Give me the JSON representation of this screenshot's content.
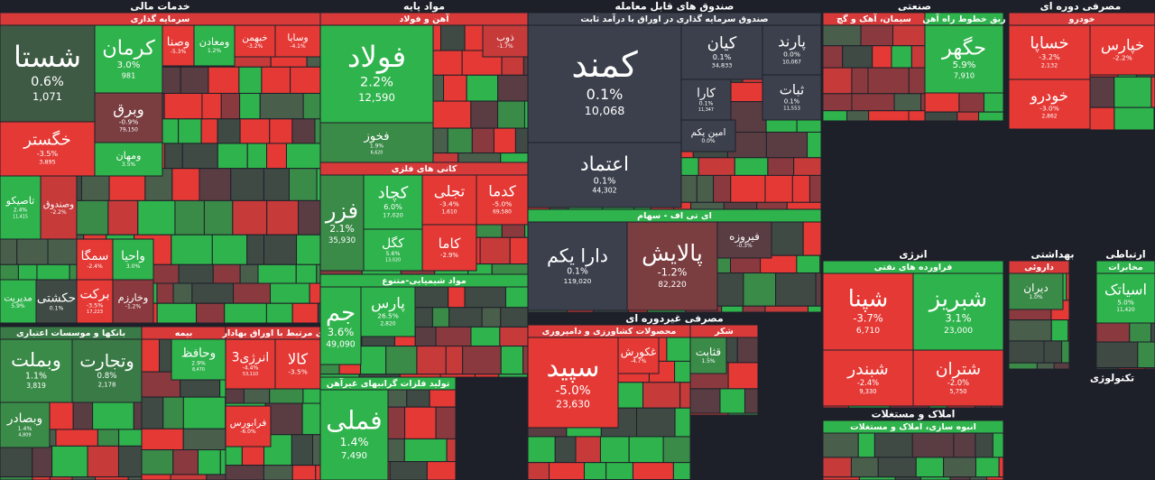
{
  "sections": [
    "خدمات مالی",
    "مواد پایه",
    "صندوق های قابل معامله",
    "صنعتی",
    "مصرفی دوره ای",
    "مصرفی غیردوره ای",
    "انرژی",
    "املاک و مستغلات",
    "بهداشتی",
    "ارتباطی",
    "تکنولوژی"
  ],
  "groups": [
    {
      "title": "سرمایه گذاری",
      "color": "#d83a3a"
    },
    {
      "title": "بانکها و موسسات اعتباری",
      "color": "#3a7a46"
    },
    {
      "title": "بیمه",
      "color": "#d83a3a"
    },
    {
      "title": "ی مرتبط با اوراق بهادار",
      "color": "#d83a3a"
    },
    {
      "title": "آهن و فولاد",
      "color": "#d83a3a"
    },
    {
      "title": "کانی های فلزی",
      "color": "#d83a3a"
    },
    {
      "title": "مواد شیمیایی-متنوع",
      "color": "#2fb34c"
    },
    {
      "title": "تولید فلزات گرانبهای غیرآهن",
      "color": "#2fb34c"
    },
    {
      "title": "صندوق سرمایه گذاری در اوراق با درآمد ثابت",
      "color": "#3b404c"
    },
    {
      "title": "ای تی اف - سهام",
      "color": "#2fb34c"
    },
    {
      "title": "محصولات کشاورزی و دامپروری",
      "color": "#d83a3a"
    },
    {
      "title": "شکر",
      "color": "#d83a3a"
    },
    {
      "title": "سیمان، آهک و گچ",
      "color": "#d83a3a"
    },
    {
      "title": "ریق خطوط راه آهن",
      "color": "#2fb34c"
    },
    {
      "title": "فراورده های نفتی",
      "color": "#2fb34c"
    },
    {
      "title": "انبوه سازی، املاک و مستغلات",
      "color": "#2fb34c"
    },
    {
      "title": "خودرو",
      "color": "#d83a3a"
    },
    {
      "title": "داروئی",
      "color": "#d83a3a"
    },
    {
      "title": "مخابرات",
      "color": "#2fb34c"
    }
  ],
  "tiles": [
    {
      "name": "شستا",
      "change": "0.6%",
      "value": "1,071",
      "color": "#3f5a44"
    },
    {
      "name": "کرمان",
      "change": "3.0%",
      "value": "981",
      "color": "#2fb34c"
    },
    {
      "name": "وبرق",
      "change": "-0.9%",
      "value": "79,150",
      "color": "#7a3d40"
    },
    {
      "name": "خگستر",
      "change": "-3.5%",
      "value": "3,895",
      "color": "#e53935"
    },
    {
      "name": "ومهان",
      "change": "3.5%",
      "color": "#2fb34c"
    },
    {
      "name": "وصنا",
      "change": "-5.3%",
      "color": "#e53935"
    },
    {
      "name": "ومعادن",
      "change": "1.2%",
      "color": "#2fb34c"
    },
    {
      "name": "خبهمن",
      "change": "-3.2%",
      "color": "#e53935"
    },
    {
      "name": "وسایا",
      "change": "-4.1%",
      "color": "#e53935"
    },
    {
      "name": "تاصیکو",
      "change": "2.4%",
      "value": "11,415",
      "color": "#2fb34c"
    },
    {
      "name": "وصندوق",
      "change": "-2.2%",
      "color": "#c63a3a"
    },
    {
      "name": "سمگا",
      "change": "-2.4%",
      "color": "#e53935"
    },
    {
      "name": "واحیا",
      "change": "3.0%",
      "color": "#2fb34c"
    },
    {
      "name": "مدیریت",
      "change": "5.9%",
      "color": "#2fb34c"
    },
    {
      "name": "حکشتی",
      "change": "0.1%",
      "color": "#3f4a44"
    },
    {
      "name": "برکت",
      "change": "-3.5%",
      "value": "17,223",
      "color": "#e53935"
    },
    {
      "name": "وخارزم",
      "change": "-1.2%",
      "color": "#8a3a3e"
    },
    {
      "name": "وبملت",
      "change": "1.1%",
      "value": "3,819",
      "color": "#3a8a48"
    },
    {
      "name": "وتجارت",
      "change": "0.8%",
      "value": "2,178",
      "color": "#3a7a46"
    },
    {
      "name": "وبصادر",
      "change": "1.4%",
      "value": "4,809",
      "color": "#3a8a48"
    },
    {
      "name": "وحافظ",
      "change": "2.9%",
      "value": "8,470",
      "color": "#2fb34c"
    },
    {
      "name": "انرژی3",
      "change": "-4.4%",
      "value": "53,110",
      "color": "#e53935"
    },
    {
      "name": "کالا",
      "change": "-3.5%",
      "color": "#e53935"
    },
    {
      "name": "فرابورس",
      "change": "-6.0%",
      "color": "#e53935"
    },
    {
      "name": "فولاد",
      "change": "2.2%",
      "value": "12,590",
      "color": "#2fb34c"
    },
    {
      "name": "فخوز",
      "change": "1.9%",
      "value": "6,620",
      "color": "#3a8a48"
    },
    {
      "name": "ذوب",
      "change": "-1.7%",
      "color": "#c63a3a"
    },
    {
      "name": "فزر",
      "change": "2.1%",
      "value": "35,930",
      "color": "#3a8a48"
    },
    {
      "name": "کچاد",
      "change": "6.0%",
      "value": "17,020",
      "color": "#2fb34c"
    },
    {
      "name": "تجلی",
      "change": "-3.4%",
      "value": "1,610",
      "color": "#e53935"
    },
    {
      "name": "کدما",
      "change": "-5.0%",
      "value": "69,580",
      "color": "#e53935"
    },
    {
      "name": "کگل",
      "change": "5.6%",
      "value": "13,020",
      "color": "#2fb34c"
    },
    {
      "name": "کاما",
      "change": "-2.9%",
      "color": "#e53935"
    },
    {
      "name": "جم",
      "change": "3.6%",
      "value": "49,090",
      "color": "#2fb34c"
    },
    {
      "name": "پارس",
      "change": "26.5%",
      "value": "2,820",
      "color": "#2fb34c"
    },
    {
      "name": "فملی",
      "change": "1.4%",
      "value": "7,490",
      "color": "#2fb34c"
    },
    {
      "name": "کمند",
      "change": "0.1%",
      "value": "10,068",
      "color": "#3b404c"
    },
    {
      "name": "کیان",
      "change": "0.1%",
      "value": "34,833",
      "color": "#3b404c"
    },
    {
      "name": "پارند",
      "change": "0.0%",
      "value": "10,067",
      "color": "#3b404c"
    },
    {
      "name": "کارا",
      "change": "0.1%",
      "value": "11,347",
      "color": "#3b404c"
    },
    {
      "name": "ثبات",
      "change": "0.1%",
      "value": "11,553",
      "color": "#3b404c"
    },
    {
      "name": "امین یکم",
      "change": "0.0%",
      "color": "#3b404c"
    },
    {
      "name": "اعتماد",
      "change": "0.1%",
      "value": "44,302",
      "color": "#3b404c"
    },
    {
      "name": "دارا یکم",
      "change": "0.1%",
      "value": "119,020",
      "color": "#3b404c"
    },
    {
      "name": "پالایش",
      "change": "-1.2%",
      "value": "82,220",
      "color": "#7a3d40"
    },
    {
      "name": "فیروزه",
      "change": "-0.3%",
      "color": "#5a3d42"
    },
    {
      "name": "سپید",
      "change": "-5.0%",
      "value": "23,630",
      "color": "#e53935"
    },
    {
      "name": "غکورش",
      "change": "-4.7%",
      "color": "#e53935"
    },
    {
      "name": "قثابت",
      "change": "1.5%",
      "color": "#3a8a48"
    },
    {
      "name": "حگهر",
      "change": "5.9%",
      "value": "7,910",
      "color": "#2fb34c"
    },
    {
      "name": "شپنا",
      "change": "-3.7%",
      "value": "6,710",
      "color": "#e53935"
    },
    {
      "name": "شبریز",
      "change": "3.1%",
      "value": "23,000",
      "color": "#2fb34c"
    },
    {
      "name": "شبندر",
      "change": "-2.4%",
      "value": "9,330",
      "color": "#e53935"
    },
    {
      "name": "شتران",
      "change": "-2.0%",
      "value": "5,750",
      "color": "#e53935"
    },
    {
      "name": "خساپا",
      "change": "-3.2%",
      "value": "2,132",
      "color": "#e53935"
    },
    {
      "name": "خودرو",
      "change": "-3.0%",
      "value": "2,862",
      "color": "#e53935"
    },
    {
      "name": "خپارس",
      "change": "-2.2%",
      "color": "#e53935"
    },
    {
      "name": "اسیاتک",
      "change": "5.0%",
      "value": "11,420",
      "color": "#2fb34c"
    },
    {
      "name": "دیران",
      "change": "1.0%",
      "color": "#3a8a48"
    }
  ]
}
